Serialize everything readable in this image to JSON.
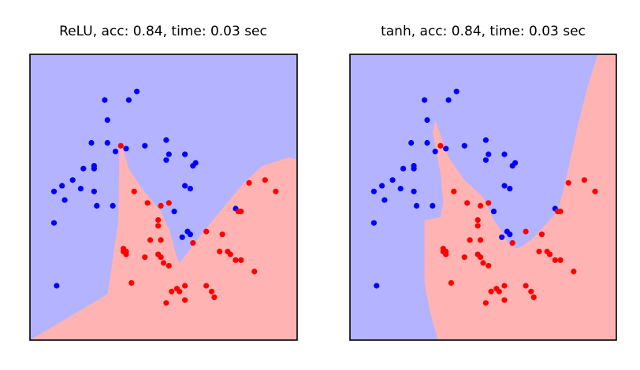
{
  "colors": {
    "blue_region": "#b3b3ff",
    "red_region": "#ffb3b3",
    "blue_point": "#0000ff",
    "red_point": "#ff0000",
    "frame": "#000000",
    "background": "#ffffff"
  },
  "chart_data": [
    {
      "type": "scatter",
      "title": "ReLU, acc: 0.84, time: 0.03 sec",
      "xlabel": "",
      "ylabel": "",
      "xlim": [
        0,
        1
      ],
      "ylim": [
        0,
        1
      ],
      "grid": false,
      "decision_boundary": [
        [
          0.0,
          0.0
        ],
        [
          0.29,
          0.16
        ],
        [
          0.33,
          0.41
        ],
        [
          0.335,
          0.68
        ],
        [
          0.345,
          0.68
        ],
        [
          0.37,
          0.6
        ],
        [
          0.42,
          0.53
        ],
        [
          0.49,
          0.45
        ],
        [
          0.52,
          0.39
        ],
        [
          0.55,
          0.29
        ],
        [
          0.56,
          0.27
        ],
        [
          0.64,
          0.37
        ],
        [
          0.72,
          0.46
        ],
        [
          0.8,
          0.55
        ],
        [
          0.87,
          0.61
        ],
        [
          0.97,
          0.64
        ],
        [
          1.0,
          0.63
        ],
        [
          1.0,
          0.0
        ]
      ],
      "series": [
        {
          "values": [
            [
              0.28,
              0.84
            ],
            [
              0.37,
              0.84
            ],
            [
              0.4,
              0.87
            ],
            [
              0.29,
              0.77
            ],
            [
              0.23,
              0.69
            ],
            [
              0.29,
              0.69
            ],
            [
              0.32,
              0.66
            ],
            [
              0.36,
              0.67
            ],
            [
              0.43,
              0.68
            ],
            [
              0.51,
              0.7
            ],
            [
              0.51,
              0.63
            ],
            [
              0.52,
              0.65
            ],
            [
              0.58,
              0.65
            ],
            [
              0.62,
              0.62
            ],
            [
              0.61,
              0.61
            ],
            [
              0.2,
              0.6
            ],
            [
              0.24,
              0.61
            ],
            [
              0.24,
              0.6
            ],
            [
              0.12,
              0.54
            ],
            [
              0.16,
              0.56
            ],
            [
              0.19,
              0.53
            ],
            [
              0.24,
              0.52
            ],
            [
              0.09,
              0.52
            ],
            [
              0.13,
              0.49
            ],
            [
              0.25,
              0.47
            ],
            [
              0.31,
              0.47
            ],
            [
              0.58,
              0.54
            ],
            [
              0.6,
              0.53
            ],
            [
              0.54,
              0.45
            ],
            [
              0.09,
              0.41
            ],
            [
              0.77,
              0.46
            ],
            [
              0.59,
              0.38
            ],
            [
              0.6,
              0.37
            ],
            [
              0.57,
              0.36
            ],
            [
              0.1,
              0.19
            ]
          ]
        },
        {
          "values": [
            [
              0.34,
              0.68
            ],
            [
              0.39,
              0.52
            ],
            [
              0.44,
              0.48
            ],
            [
              0.49,
              0.47
            ],
            [
              0.52,
              0.48
            ],
            [
              0.78,
              0.45
            ],
            [
              0.79,
              0.45
            ],
            [
              0.82,
              0.55
            ],
            [
              0.88,
              0.56
            ],
            [
              0.92,
              0.52
            ],
            [
              0.48,
              0.42
            ],
            [
              0.48,
              0.4
            ],
            [
              0.66,
              0.38
            ],
            [
              0.72,
              0.37
            ],
            [
              0.45,
              0.35
            ],
            [
              0.49,
              0.35
            ],
            [
              0.61,
              0.34
            ],
            [
              0.71,
              0.31
            ],
            [
              0.35,
              0.32
            ],
            [
              0.35,
              0.31
            ],
            [
              0.36,
              0.31
            ],
            [
              0.36,
              0.3
            ],
            [
              0.43,
              0.29
            ],
            [
              0.48,
              0.3
            ],
            [
              0.49,
              0.29
            ],
            [
              0.5,
              0.27
            ],
            [
              0.52,
              0.26
            ],
            [
              0.74,
              0.31
            ],
            [
              0.75,
              0.3
            ],
            [
              0.77,
              0.28
            ],
            [
              0.79,
              0.28
            ],
            [
              0.84,
              0.24
            ],
            [
              0.38,
              0.2
            ],
            [
              0.58,
              0.19
            ],
            [
              0.55,
              0.18
            ],
            [
              0.53,
              0.17
            ],
            [
              0.56,
              0.17
            ],
            [
              0.66,
              0.19
            ],
            [
              0.68,
              0.17
            ],
            [
              0.69,
              0.15
            ],
            [
              0.51,
              0.13
            ],
            [
              0.58,
              0.14
            ]
          ]
        }
      ]
    },
    {
      "type": "scatter",
      "title": "tanh, acc: 0.84, time: 0.03 sec",
      "xlabel": "",
      "ylabel": "",
      "xlim": [
        0,
        1
      ],
      "ylim": [
        0,
        1
      ],
      "grid": false,
      "decision_boundary": [
        [
          0.33,
          0.0
        ],
        [
          0.3,
          0.1
        ],
        [
          0.28,
          0.2
        ],
        [
          0.28,
          0.3
        ],
        [
          0.28,
          0.42
        ],
        [
          0.34,
          0.43
        ],
        [
          0.35,
          0.48
        ],
        [
          0.34,
          0.58
        ],
        [
          0.31,
          0.73
        ],
        [
          0.32,
          0.77
        ],
        [
          0.37,
          0.64
        ],
        [
          0.43,
          0.56
        ],
        [
          0.5,
          0.5
        ],
        [
          0.54,
          0.42
        ],
        [
          0.57,
          0.38
        ],
        [
          0.6,
          0.33
        ],
        [
          0.63,
          0.32
        ],
        [
          0.68,
          0.35
        ],
        [
          0.73,
          0.4
        ],
        [
          0.78,
          0.45
        ],
        [
          0.81,
          0.56
        ],
        [
          0.85,
          0.73
        ],
        [
          0.89,
          0.88
        ],
        [
          0.93,
          1.0
        ],
        [
          1.0,
          1.0
        ],
        [
          1.0,
          0.0
        ]
      ],
      "series": [
        {
          "values": [
            [
              0.28,
              0.84
            ],
            [
              0.37,
              0.84
            ],
            [
              0.4,
              0.87
            ],
            [
              0.29,
              0.77
            ],
            [
              0.23,
              0.69
            ],
            [
              0.29,
              0.69
            ],
            [
              0.32,
              0.66
            ],
            [
              0.36,
              0.67
            ],
            [
              0.43,
              0.68
            ],
            [
              0.51,
              0.7
            ],
            [
              0.51,
              0.63
            ],
            [
              0.52,
              0.65
            ],
            [
              0.58,
              0.65
            ],
            [
              0.62,
              0.62
            ],
            [
              0.61,
              0.61
            ],
            [
              0.2,
              0.6
            ],
            [
              0.24,
              0.61
            ],
            [
              0.24,
              0.6
            ],
            [
              0.12,
              0.54
            ],
            [
              0.16,
              0.56
            ],
            [
              0.19,
              0.53
            ],
            [
              0.24,
              0.52
            ],
            [
              0.09,
              0.52
            ],
            [
              0.13,
              0.49
            ],
            [
              0.25,
              0.47
            ],
            [
              0.31,
              0.47
            ],
            [
              0.58,
              0.54
            ],
            [
              0.6,
              0.53
            ],
            [
              0.54,
              0.45
            ],
            [
              0.09,
              0.41
            ],
            [
              0.77,
              0.46
            ],
            [
              0.59,
              0.38
            ],
            [
              0.6,
              0.37
            ],
            [
              0.57,
              0.36
            ],
            [
              0.1,
              0.19
            ]
          ]
        },
        {
          "values": [
            [
              0.34,
              0.68
            ],
            [
              0.39,
              0.52
            ],
            [
              0.44,
              0.48
            ],
            [
              0.49,
              0.47
            ],
            [
              0.52,
              0.48
            ],
            [
              0.78,
              0.45
            ],
            [
              0.79,
              0.45
            ],
            [
              0.82,
              0.55
            ],
            [
              0.88,
              0.56
            ],
            [
              0.92,
              0.52
            ],
            [
              0.48,
              0.42
            ],
            [
              0.48,
              0.4
            ],
            [
              0.66,
              0.38
            ],
            [
              0.72,
              0.37
            ],
            [
              0.45,
              0.35
            ],
            [
              0.49,
              0.35
            ],
            [
              0.61,
              0.34
            ],
            [
              0.71,
              0.31
            ],
            [
              0.35,
              0.32
            ],
            [
              0.35,
              0.31
            ],
            [
              0.36,
              0.31
            ],
            [
              0.36,
              0.3
            ],
            [
              0.43,
              0.29
            ],
            [
              0.48,
              0.3
            ],
            [
              0.49,
              0.29
            ],
            [
              0.5,
              0.27
            ],
            [
              0.52,
              0.26
            ],
            [
              0.74,
              0.31
            ],
            [
              0.75,
              0.3
            ],
            [
              0.77,
              0.28
            ],
            [
              0.79,
              0.28
            ],
            [
              0.84,
              0.24
            ],
            [
              0.38,
              0.2
            ],
            [
              0.58,
              0.19
            ],
            [
              0.55,
              0.18
            ],
            [
              0.53,
              0.17
            ],
            [
              0.56,
              0.17
            ],
            [
              0.66,
              0.19
            ],
            [
              0.68,
              0.17
            ],
            [
              0.69,
              0.15
            ],
            [
              0.51,
              0.13
            ],
            [
              0.58,
              0.14
            ]
          ]
        }
      ]
    }
  ]
}
